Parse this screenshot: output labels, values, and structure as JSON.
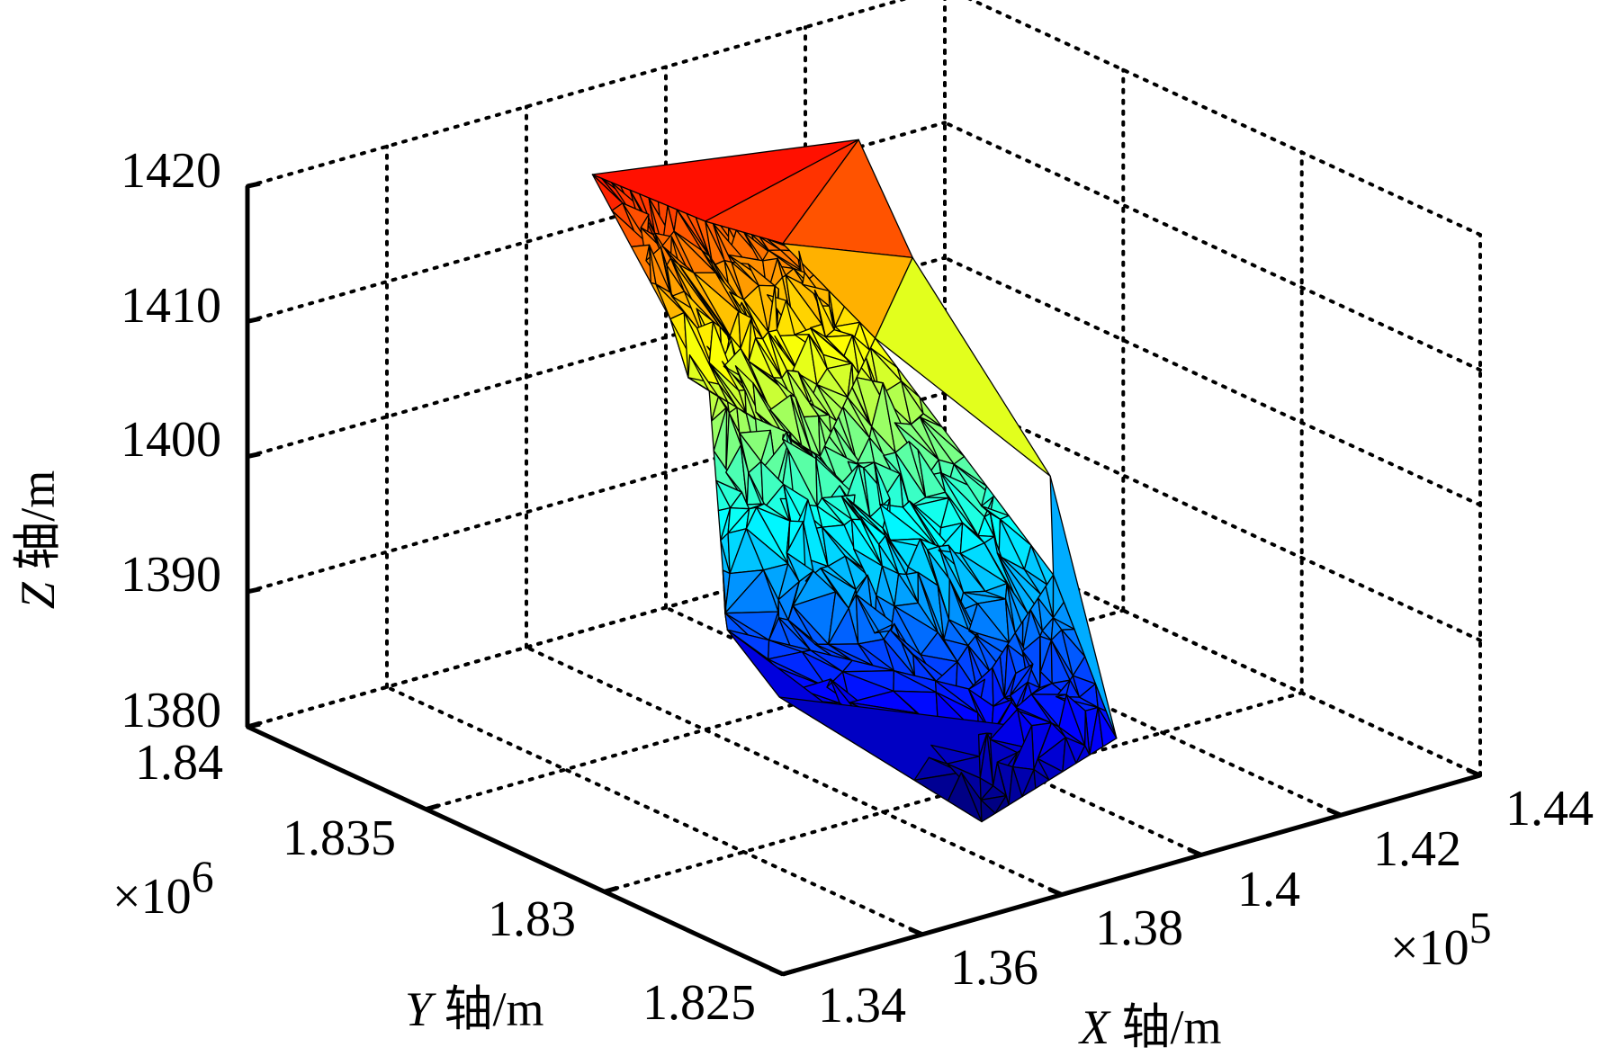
{
  "chart_data": {
    "type": "surface3d",
    "title": "",
    "description_kind": "triangulated terrain surface colored by elevation (jet colormap)",
    "colormap": "jet",
    "x_axis": {
      "label_var": "X",
      "label_unit": " 轴/m",
      "ticks": [
        "1.34",
        "1.36",
        "1.38",
        "1.4",
        "1.42",
        "1.44"
      ],
      "tick_values": [
        1.34,
        1.36,
        1.38,
        1.4,
        1.42,
        1.44
      ],
      "multiplier_text": "×10",
      "multiplier_exp": "5",
      "range": [
        1.34,
        1.44
      ]
    },
    "y_axis": {
      "label_var": "Y",
      "label_unit": " 轴/m",
      "ticks": [
        "1.825",
        "1.83",
        "1.835",
        "1.84"
      ],
      "tick_values": [
        1.825,
        1.83,
        1.835,
        1.84
      ],
      "multiplier_text": "×10",
      "multiplier_exp": "6",
      "range": [
        1.825,
        1.84
      ]
    },
    "z_axis": {
      "label_var": "Z",
      "label_unit": " 轴/m",
      "ticks": [
        "1380",
        "1390",
        "1400",
        "1410",
        "1420"
      ],
      "tick_values": [
        1380,
        1390,
        1400,
        1410,
        1420
      ],
      "range": [
        1380,
        1420
      ]
    },
    "grid": true,
    "surface": {
      "z_min": 1380,
      "z_max": 1418,
      "vertices": [
        [
          1.3817,
          1.8347,
          1387.5
        ],
        [
          1.391,
          1.8403,
          1413.0
        ],
        [
          1.3985,
          1.8386,
          1410.5
        ],
        [
          1.4174,
          1.838,
          1414.5
        ],
        [
          1.419,
          1.8368,
          1407.0
        ],
        [
          1.4152,
          1.8322,
          1397.0
        ],
        [
          1.4032,
          1.828,
          1384.5
        ],
        [
          1.3895,
          1.8291,
          1379.0
        ],
        [
          1.3825,
          1.8334,
          1384.0
        ],
        [
          1.3883,
          1.8365,
          1402.0
        ],
        [
          1.396,
          1.8349,
          1398.0
        ],
        [
          1.408,
          1.8357,
          1404.0
        ],
        [
          1.4095,
          1.831,
          1392.0
        ],
        [
          1.396,
          1.8305,
          1386.0
        ],
        [
          1.405,
          1.8377,
          1409.0
        ]
      ]
    }
  }
}
